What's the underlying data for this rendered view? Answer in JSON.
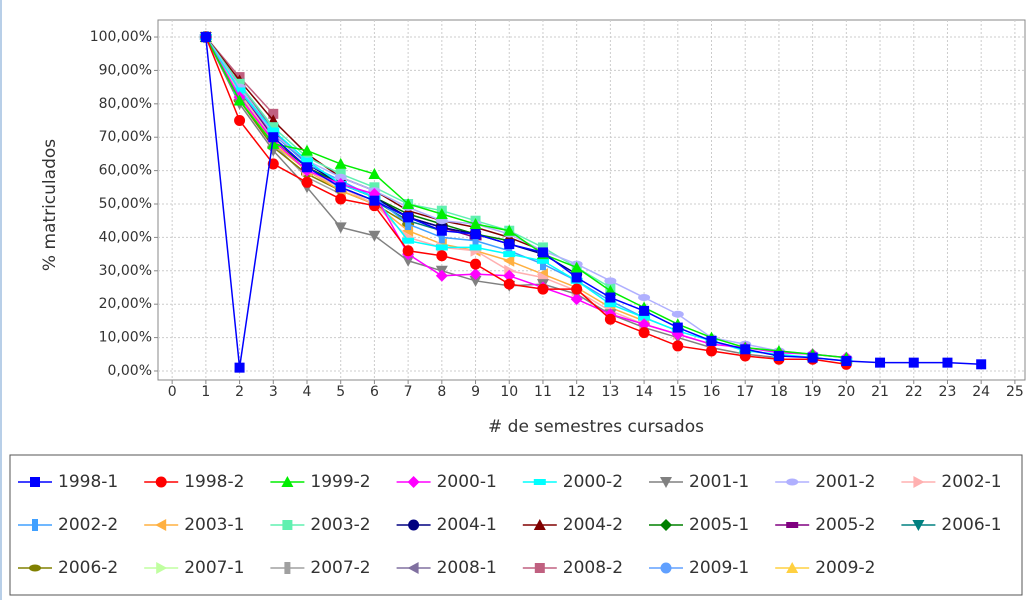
{
  "chart_data": {
    "type": "line",
    "y_label": "% matriculados",
    "x_label": "# de semestres cursados",
    "x": [
      1,
      2,
      3,
      4,
      5,
      6,
      7,
      8,
      9,
      10,
      11,
      12,
      13,
      14,
      15,
      16,
      17,
      18,
      19,
      20,
      21,
      22,
      23,
      24
    ],
    "xlim": [
      -0.42,
      25.3
    ],
    "xticks": [
      0,
      1,
      2,
      3,
      4,
      5,
      6,
      7,
      8,
      9,
      10,
      11,
      12,
      13,
      14,
      15,
      16,
      17,
      18,
      19,
      20,
      21,
      22,
      23,
      24,
      25
    ],
    "ylim": [
      -2.7,
      105.1
    ],
    "yticks": [
      {
        "value": 0,
        "label": "0,00%"
      },
      {
        "value": 10,
        "label": "10,00%"
      },
      {
        "value": 20,
        "label": "20,00%"
      },
      {
        "value": 30,
        "label": "30,00%"
      },
      {
        "value": 40,
        "label": "40,00%"
      },
      {
        "value": 50,
        "label": "50,00%"
      },
      {
        "value": 60,
        "label": "60,00%"
      },
      {
        "value": 70,
        "label": "70,00%"
      },
      {
        "value": 80,
        "label": "80,00%"
      },
      {
        "value": 90,
        "label": "90,00%"
      },
      {
        "value": 100,
        "label": "100,00%"
      }
    ],
    "grid": true,
    "legend": "bottom",
    "series": [
      {
        "name": "1998-1",
        "color": "#0000ff",
        "marker": "square",
        "values": [
          100,
          1,
          70,
          61,
          55,
          51,
          46,
          42,
          41,
          38,
          35.5,
          28,
          22,
          18,
          13,
          9,
          6.5,
          4.5,
          4,
          3,
          2.5,
          2.5,
          2.5,
          2
        ]
      },
      {
        "name": "1998-2",
        "color": "#ff0000",
        "marker": "circle",
        "values": [
          100,
          75,
          62,
          56.5,
          51.5,
          49.5,
          36,
          34.5,
          32,
          26,
          24.5,
          24.5,
          15.5,
          11.5,
          7.5,
          6,
          4.5,
          3.5,
          3.5,
          2,
          null,
          null,
          null,
          null
        ]
      },
      {
        "name": "1999-2",
        "color": "#00ee00",
        "marker": "triangle-up",
        "values": [
          100,
          81,
          68,
          66,
          62,
          59,
          50,
          47,
          44,
          42,
          35,
          31,
          24,
          19,
          14,
          10,
          7,
          6,
          5,
          4,
          null,
          null,
          null,
          null
        ]
      },
      {
        "name": "2000-1",
        "color": "#ff00ff",
        "marker": "diamond",
        "values": [
          100,
          82,
          69,
          60,
          56,
          53,
          35,
          28.5,
          29,
          28.5,
          25,
          21.5,
          17,
          14,
          11,
          8,
          7,
          5.5,
          5,
          4,
          null,
          null,
          null,
          null
        ]
      },
      {
        "name": "2000-2",
        "color": "#00ffff",
        "marker": "hrect",
        "values": [
          100,
          84,
          72,
          63,
          56,
          52,
          39,
          37,
          37,
          35,
          33,
          27,
          20,
          16,
          12,
          9,
          6,
          5,
          4,
          3,
          null,
          null,
          null,
          null
        ]
      },
      {
        "name": "2001-1",
        "color": "#808080",
        "marker": "triangle-down",
        "values": [
          100,
          80,
          66,
          55,
          43,
          40.5,
          33,
          30,
          27,
          25.5,
          26,
          23,
          17,
          13,
          10,
          7,
          5,
          4,
          null,
          null,
          null,
          null,
          null,
          null
        ]
      },
      {
        "name": "2001-2",
        "color": "#b0b0ff",
        "marker": "ellipse",
        "values": [
          100,
          85,
          71,
          63,
          58,
          54,
          49,
          45,
          44,
          41,
          36,
          32,
          27,
          22,
          17,
          10,
          8,
          6,
          5,
          4,
          null,
          null,
          null,
          null
        ]
      },
      {
        "name": "2002-1",
        "color": "#ffb0b0",
        "marker": "triangle-right",
        "values": [
          100,
          83,
          69,
          60,
          55,
          50,
          40,
          37,
          36,
          30,
          28,
          24,
          18,
          14,
          11,
          8,
          null,
          null,
          null,
          null,
          null,
          null,
          null,
          null
        ]
      },
      {
        "name": "2002-2",
        "color": "#40a0ff",
        "marker": "vrect",
        "values": [
          100,
          84,
          71,
          62,
          57,
          52,
          44,
          40,
          39,
          36,
          32,
          27,
          21,
          16,
          12,
          null,
          null,
          null,
          null,
          null,
          null,
          null,
          null,
          null
        ]
      },
      {
        "name": "2003-1",
        "color": "#ffb040",
        "marker": "triangle-left",
        "values": [
          100,
          82,
          68,
          60,
          54,
          50,
          42,
          38,
          36,
          33,
          29,
          25,
          19,
          15,
          null,
          null,
          null,
          null,
          null,
          null,
          null,
          null,
          null,
          null
        ]
      },
      {
        "name": "2003-2",
        "color": "#60f0b0",
        "marker": "square",
        "values": [
          100,
          86,
          73,
          64,
          59,
          55,
          50,
          48,
          45,
          42,
          37,
          31,
          25,
          null,
          null,
          null,
          null,
          null,
          null,
          null,
          null,
          null,
          null,
          null
        ]
      },
      {
        "name": "2004-1",
        "color": "#000080",
        "marker": "circle",
        "values": [
          100,
          85,
          71,
          62,
          56,
          52,
          46,
          43,
          41,
          38,
          35,
          29,
          null,
          null,
          null,
          null,
          null,
          null,
          null,
          null,
          null,
          null,
          null,
          null
        ]
      },
      {
        "name": "2004-2",
        "color": "#800000",
        "marker": "triangle-up",
        "values": [
          100,
          87,
          75,
          65,
          58,
          54,
          48,
          45,
          43,
          40,
          36,
          null,
          null,
          null,
          null,
          null,
          null,
          null,
          null,
          null,
          null,
          null,
          null,
          null
        ]
      },
      {
        "name": "2005-1",
        "color": "#008000",
        "marker": "diamond",
        "values": [
          100,
          83,
          69,
          61,
          56,
          52,
          47,
          44,
          41,
          39,
          null,
          null,
          null,
          null,
          null,
          null,
          null,
          null,
          null,
          null,
          null,
          null,
          null,
          null
        ]
      },
      {
        "name": "2005-2",
        "color": "#800080",
        "marker": "hrect",
        "values": [
          100,
          84,
          70,
          61,
          56,
          52,
          46,
          43,
          40,
          null,
          null,
          null,
          null,
          null,
          null,
          null,
          null,
          null,
          null,
          null,
          null,
          null,
          null,
          null
        ]
      },
      {
        "name": "2006-1",
        "color": "#008080",
        "marker": "triangle-down",
        "values": [
          100,
          82,
          69,
          60,
          55,
          51,
          45,
          42,
          null,
          null,
          null,
          null,
          null,
          null,
          null,
          null,
          null,
          null,
          null,
          null,
          null,
          null,
          null,
          null
        ]
      },
      {
        "name": "2006-2",
        "color": "#808000",
        "marker": "ellipse",
        "values": [
          100,
          81,
          67,
          59,
          54,
          50,
          44,
          null,
          null,
          null,
          null,
          null,
          null,
          null,
          null,
          null,
          null,
          null,
          null,
          null,
          null,
          null,
          null,
          null
        ]
      },
      {
        "name": "2007-1",
        "color": "#c0ffa0",
        "marker": "triangle-right",
        "values": [
          100,
          83,
          69,
          60,
          55,
          51,
          null,
          null,
          null,
          null,
          null,
          null,
          null,
          null,
          null,
          null,
          null,
          null,
          null,
          null,
          null,
          null,
          null,
          null
        ]
      },
      {
        "name": "2007-2",
        "color": "#a0a0a0",
        "marker": "vrect",
        "values": [
          100,
          82,
          68,
          58,
          53,
          null,
          null,
          null,
          null,
          null,
          null,
          null,
          null,
          null,
          null,
          null,
          null,
          null,
          null,
          null,
          null,
          null,
          null,
          null
        ]
      },
      {
        "name": "2008-1",
        "color": "#8070a0",
        "marker": "triangle-left",
        "values": [
          100,
          86,
          72,
          62,
          null,
          null,
          null,
          null,
          null,
          null,
          null,
          null,
          null,
          null,
          null,
          null,
          null,
          null,
          null,
          null,
          null,
          null,
          null,
          null
        ]
      },
      {
        "name": "2008-2",
        "color": "#c06080",
        "marker": "square",
        "values": [
          100,
          88,
          77,
          null,
          null,
          null,
          null,
          null,
          null,
          null,
          null,
          null,
          null,
          null,
          null,
          null,
          null,
          null,
          null,
          null,
          null,
          null,
          null,
          null
        ]
      },
      {
        "name": "2009-1",
        "color": "#60a0ff",
        "marker": "circle",
        "values": [
          100,
          85,
          null,
          null,
          null,
          null,
          null,
          null,
          null,
          null,
          null,
          null,
          null,
          null,
          null,
          null,
          null,
          null,
          null,
          null,
          null,
          null,
          null,
          null
        ]
      },
      {
        "name": "2009-2",
        "color": "#ffd040",
        "marker": "triangle-up",
        "values": [
          100,
          null,
          null,
          null,
          null,
          null,
          null,
          null,
          null,
          null,
          null,
          null,
          null,
          null,
          null,
          null,
          null,
          null,
          null,
          null,
          null,
          null,
          null,
          null
        ]
      }
    ]
  }
}
